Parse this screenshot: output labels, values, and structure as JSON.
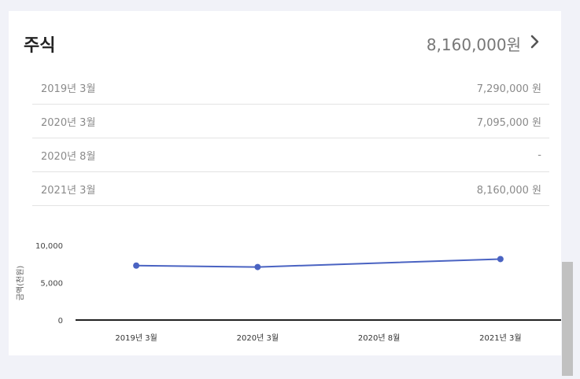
{
  "section": {
    "title": "주식",
    "total": "8,160,000원"
  },
  "history": [
    {
      "date": "2019년 3월",
      "amount": "7,290,000 원"
    },
    {
      "date": "2020년 3월",
      "amount": "7,095,000 원"
    },
    {
      "date": "2020년 8월",
      "amount": "-"
    },
    {
      "date": "2021년 3월",
      "amount": "8,160,000 원"
    }
  ],
  "chart_data": {
    "type": "line",
    "categories": [
      "2019년 3월",
      "2020년 3월",
      "2020년 8월",
      "2021년 3월"
    ],
    "series": [
      {
        "values": [
          7290,
          7095,
          null,
          8160
        ]
      }
    ],
    "ylabel": "금액(천원)",
    "yticks": [
      "10,000",
      "5,000",
      "0"
    ],
    "ylim": [
      0,
      10000
    ],
    "line_color": "#4a63c2",
    "grid": false
  },
  "colors": {
    "background": "#f1f2f8",
    "card": "#ffffff",
    "line": "#4a63c2"
  }
}
